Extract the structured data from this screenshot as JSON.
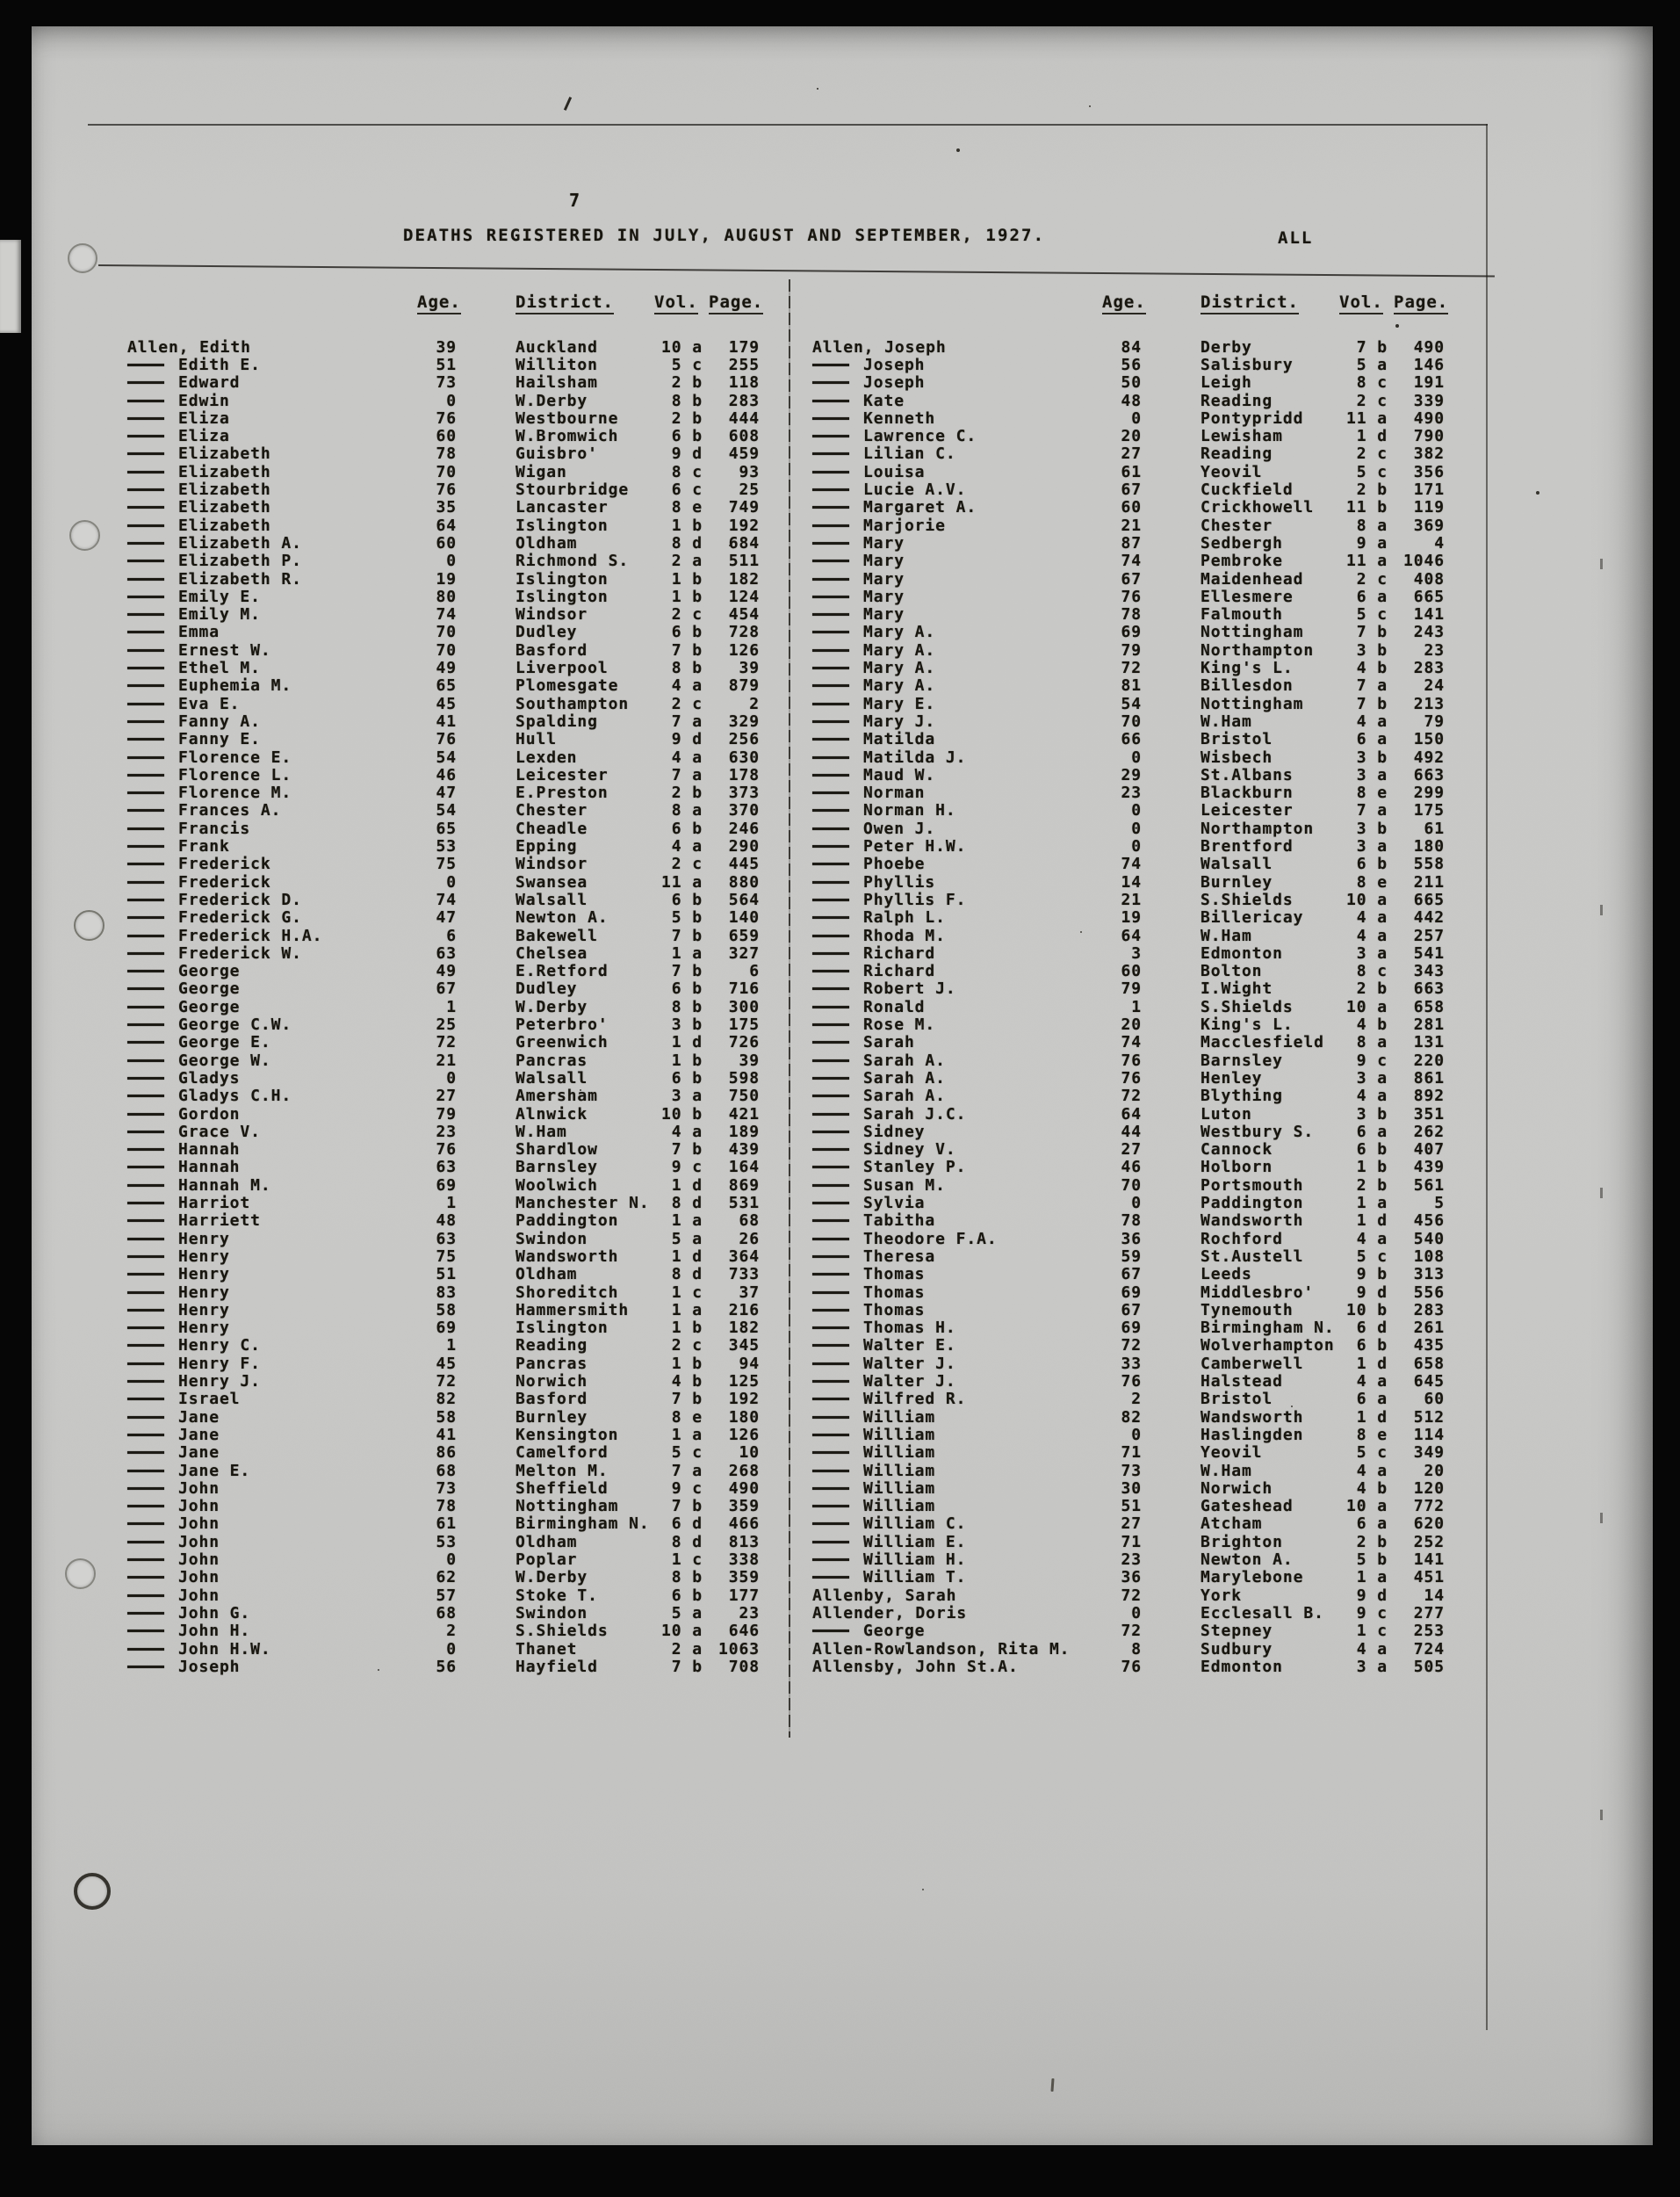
{
  "colors": {
    "paper": "#c7c7c5",
    "ink": "#18160f"
  },
  "page": {
    "number": "7",
    "title": "DEATHS REGISTERED IN JULY, AUGUST AND SEPTEMBER, 1927.",
    "corner_label": "ALL"
  },
  "columns": {
    "age": "Age.",
    "district": "District.",
    "vol": "Vol.",
    "page": "Page."
  },
  "left_table": {
    "rows": [
      [
        "Allen, Edith",
        0,
        "39",
        "Auckland",
        "10 a",
        "179"
      ],
      [
        "Edith E.",
        1,
        "51",
        "Williton",
        "5 c",
        "255"
      ],
      [
        "Edward",
        1,
        "73",
        "Hailsham",
        "2 b",
        "118"
      ],
      [
        "Edwin",
        1,
        "0",
        "W.Derby",
        "8 b",
        "283"
      ],
      [
        "Eliza",
        1,
        "76",
        "Westbourne",
        "2 b",
        "444"
      ],
      [
        "Eliza",
        1,
        "60",
        "W.Bromwich",
        "6 b",
        "608"
      ],
      [
        "Elizabeth",
        1,
        "78",
        "Guisbro'",
        "9 d",
        "459"
      ],
      [
        "Elizabeth",
        1,
        "70",
        "Wigan",
        "8 c",
        "93"
      ],
      [
        "Elizabeth",
        1,
        "76",
        "Stourbridge",
        "6 c",
        "25"
      ],
      [
        "Elizabeth",
        1,
        "35",
        "Lancaster",
        "8 e",
        "749"
      ],
      [
        "Elizabeth",
        1,
        "64",
        "Islington",
        "1 b",
        "192"
      ],
      [
        "Elizabeth A.",
        1,
        "60",
        "Oldham",
        "8 d",
        "684"
      ],
      [
        "Elizabeth P.",
        1,
        "0",
        "Richmond S.",
        "2 a",
        "511"
      ],
      [
        "Elizabeth R.",
        1,
        "19",
        "Islington",
        "1 b",
        "182"
      ],
      [
        "Emily E.",
        1,
        "80",
        "Islington",
        "1 b",
        "124"
      ],
      [
        "Emily M.",
        1,
        "74",
        "Windsor",
        "2 c",
        "454"
      ],
      [
        "Emma",
        1,
        "70",
        "Dudley",
        "6 b",
        "728"
      ],
      [
        "Ernest W.",
        1,
        "70",
        "Basford",
        "7 b",
        "126"
      ],
      [
        "Ethel M.",
        1,
        "49",
        "Liverpool",
        "8 b",
        "39"
      ],
      [
        "Euphemia M.",
        1,
        "65",
        "Plomesgate",
        "4 a",
        "879"
      ],
      [
        "Eva E.",
        1,
        "45",
        "Southampton",
        "2 c",
        "2"
      ],
      [
        "Fanny A.",
        1,
        "41",
        "Spalding",
        "7 a",
        "329"
      ],
      [
        "Fanny E.",
        1,
        "76",
        "Hull",
        "9 d",
        "256"
      ],
      [
        "Florence E.",
        1,
        "54",
        "Lexden",
        "4 a",
        "630"
      ],
      [
        "Florence L.",
        1,
        "46",
        "Leicester",
        "7 a",
        "178"
      ],
      [
        "Florence M.",
        1,
        "47",
        "E.Preston",
        "2 b",
        "373"
      ],
      [
        "Frances A.",
        1,
        "54",
        "Chester",
        "8 a",
        "370"
      ],
      [
        "Francis",
        1,
        "65",
        "Cheadle",
        "6 b",
        "246"
      ],
      [
        "Frank",
        1,
        "53",
        "Epping",
        "4 a",
        "290"
      ],
      [
        "Frederick",
        1,
        "75",
        "Windsor",
        "2 c",
        "445"
      ],
      [
        "Frederick",
        1,
        "0",
        "Swansea",
        "11 a",
        "880"
      ],
      [
        "Frederick D.",
        1,
        "74",
        "Walsall",
        "6 b",
        "564"
      ],
      [
        "Frederick G.",
        1,
        "47",
        "Newton A.",
        "5 b",
        "140"
      ],
      [
        "Frederick H.A.",
        1,
        "6",
        "Bakewell",
        "7 b",
        "659"
      ],
      [
        "Frederick W.",
        1,
        "63",
        "Chelsea",
        "1 a",
        "327"
      ],
      [
        "George",
        1,
        "49",
        "E.Retford",
        "7 b",
        "6"
      ],
      [
        "George",
        1,
        "67",
        "Dudley",
        "6 b",
        "716"
      ],
      [
        "George",
        1,
        "1",
        "W.Derby",
        "8 b",
        "300"
      ],
      [
        "George C.W.",
        1,
        "25",
        "Peterbro'",
        "3 b",
        "175"
      ],
      [
        "George E.",
        1,
        "72",
        "Greenwich",
        "1 d",
        "726"
      ],
      [
        "George W.",
        1,
        "21",
        "Pancras",
        "1 b",
        "39"
      ],
      [
        "Gladys",
        1,
        "0",
        "Walsall",
        "6 b",
        "598"
      ],
      [
        "Gladys C.H.",
        1,
        "27",
        "Amersham",
        "3 a",
        "750"
      ],
      [
        "Gordon",
        1,
        "79",
        "Alnwick",
        "10 b",
        "421"
      ],
      [
        "Grace V.",
        1,
        "23",
        "W.Ham",
        "4 a",
        "189"
      ],
      [
        "Hannah",
        1,
        "76",
        "Shardlow",
        "7 b",
        "439"
      ],
      [
        "Hannah",
        1,
        "63",
        "Barnsley",
        "9 c",
        "164"
      ],
      [
        "Hannah M.",
        1,
        "69",
        "Woolwich",
        "1 d",
        "869"
      ],
      [
        "Harriot",
        1,
        "1",
        "Manchester N.",
        "8 d",
        "531"
      ],
      [
        "Harriett",
        1,
        "48",
        "Paddington",
        "1 a",
        "68"
      ],
      [
        "Henry",
        1,
        "63",
        "Swindon",
        "5 a",
        "26"
      ],
      [
        "Henry",
        1,
        "75",
        "Wandsworth",
        "1 d",
        "364"
      ],
      [
        "Henry",
        1,
        "51",
        "Oldham",
        "8 d",
        "733"
      ],
      [
        "Henry",
        1,
        "83",
        "Shoreditch",
        "1 c",
        "37"
      ],
      [
        "Henry",
        1,
        "58",
        "Hammersmith",
        "1 a",
        "216"
      ],
      [
        "Henry",
        1,
        "69",
        "Islington",
        "1 b",
        "182"
      ],
      [
        "Henry C.",
        1,
        "1",
        "Reading",
        "2 c",
        "345"
      ],
      [
        "Henry F.",
        1,
        "45",
        "Pancras",
        "1 b",
        "94"
      ],
      [
        "Henry J.",
        1,
        "72",
        "Norwich",
        "4 b",
        "125"
      ],
      [
        "Israel",
        1,
        "82",
        "Basford",
        "7 b",
        "192"
      ],
      [
        "Jane",
        1,
        "58",
        "Burnley",
        "8 e",
        "180"
      ],
      [
        "Jane",
        1,
        "41",
        "Kensington",
        "1 a",
        "126"
      ],
      [
        "Jane",
        1,
        "86",
        "Camelford",
        "5 c",
        "10"
      ],
      [
        "Jane E.",
        1,
        "68",
        "Melton M.",
        "7 a",
        "268"
      ],
      [
        "John",
        1,
        "73",
        "Sheffield",
        "9 c",
        "490"
      ],
      [
        "John",
        1,
        "78",
        "Nottingham",
        "7 b",
        "359"
      ],
      [
        "John",
        1,
        "61",
        "Birmingham N.",
        "6 d",
        "466"
      ],
      [
        "John",
        1,
        "53",
        "Oldham",
        "8 d",
        "813"
      ],
      [
        "John",
        1,
        "0",
        "Poplar",
        "1 c",
        "338"
      ],
      [
        "John",
        1,
        "62",
        "W.Derby",
        "8 b",
        "359"
      ],
      [
        "John",
        1,
        "57",
        "Stoke T.",
        "6 b",
        "177"
      ],
      [
        "John G.",
        1,
        "68",
        "Swindon",
        "5 a",
        "23"
      ],
      [
        "John H.",
        1,
        "2",
        "S.Shields",
        "10 a",
        "646"
      ],
      [
        "John H.W.",
        1,
        "0",
        "Thanet",
        "2 a",
        "1063"
      ],
      [
        "Joseph",
        1,
        "56",
        "Hayfield",
        "7 b",
        "708"
      ]
    ]
  },
  "right_table": {
    "rows": [
      [
        "Allen, Joseph",
        0,
        "84",
        "Derby",
        "7 b",
        "490"
      ],
      [
        "Joseph",
        1,
        "56",
        "Salisbury",
        "5 a",
        "146"
      ],
      [
        "Joseph",
        1,
        "50",
        "Leigh",
        "8 c",
        "191"
      ],
      [
        "Kate",
        1,
        "48",
        "Reading",
        "2 c",
        "339"
      ],
      [
        "Kenneth",
        1,
        "0",
        "Pontypridd",
        "11 a",
        "490"
      ],
      [
        "Lawrence C.",
        1,
        "20",
        "Lewisham",
        "1 d",
        "790"
      ],
      [
        "Lilian C.",
        1,
        "27",
        "Reading",
        "2 c",
        "382"
      ],
      [
        "Louisa",
        1,
        "61",
        "Yeovil",
        "5 c",
        "356"
      ],
      [
        "Lucie A.V.",
        1,
        "67",
        "Cuckfield",
        "2 b",
        "171"
      ],
      [
        "Margaret A.",
        1,
        "60",
        "Crickhowell",
        "11 b",
        "119"
      ],
      [
        "Marjorie",
        1,
        "21",
        "Chester",
        "8 a",
        "369"
      ],
      [
        "Mary",
        1,
        "87",
        "Sedbergh",
        "9 a",
        "4"
      ],
      [
        "Mary",
        1,
        "74",
        "Pembroke",
        "11 a",
        "1046"
      ],
      [
        "Mary",
        1,
        "67",
        "Maidenhead",
        "2 c",
        "408"
      ],
      [
        "Mary",
        1,
        "76",
        "Ellesmere",
        "6 a",
        "665"
      ],
      [
        "Mary",
        1,
        "78",
        "Falmouth",
        "5 c",
        "141"
      ],
      [
        "Mary A.",
        1,
        "69",
        "Nottingham",
        "7 b",
        "243"
      ],
      [
        "Mary A.",
        1,
        "79",
        "Northampton",
        "3 b",
        "23"
      ],
      [
        "Mary A.",
        1,
        "72",
        "King's L.",
        "4 b",
        "283"
      ],
      [
        "Mary A.",
        1,
        "81",
        "Billesdon",
        "7 a",
        "24"
      ],
      [
        "Mary E.",
        1,
        "54",
        "Nottingham",
        "7 b",
        "213"
      ],
      [
        "Mary J.",
        1,
        "70",
        "W.Ham",
        "4 a",
        "79"
      ],
      [
        "Matilda",
        1,
        "66",
        "Bristol",
        "6 a",
        "150"
      ],
      [
        "Matilda J.",
        1,
        "0",
        "Wisbech",
        "3 b",
        "492"
      ],
      [
        "Maud W.",
        1,
        "29",
        "St.Albans",
        "3 a",
        "663"
      ],
      [
        "Norman",
        1,
        "23",
        "Blackburn",
        "8 e",
        "299"
      ],
      [
        "Norman H.",
        1,
        "0",
        "Leicester",
        "7 a",
        "175"
      ],
      [
        "Owen J.",
        1,
        "0",
        "Northampton",
        "3 b",
        "61"
      ],
      [
        "Peter H.W.",
        1,
        "0",
        "Brentford",
        "3 a",
        "180"
      ],
      [
        "Phoebe",
        1,
        "74",
        "Walsall",
        "6 b",
        "558"
      ],
      [
        "Phyllis",
        1,
        "14",
        "Burnley",
        "8 e",
        "211"
      ],
      [
        "Phyllis F.",
        1,
        "21",
        "S.Shields",
        "10 a",
        "665"
      ],
      [
        "Ralph L.",
        1,
        "19",
        "Billericay",
        "4 a",
        "442"
      ],
      [
        "Rhoda M.",
        1,
        "64",
        "W.Ham",
        "4 a",
        "257"
      ],
      [
        "Richard",
        1,
        "3",
        "Edmonton",
        "3 a",
        "541"
      ],
      [
        "Richard",
        1,
        "60",
        "Bolton",
        "8 c",
        "343"
      ],
      [
        "Robert J.",
        1,
        "79",
        "I.Wight",
        "2 b",
        "663"
      ],
      [
        "Ronald",
        1,
        "1",
        "S.Shields",
        "10 a",
        "658"
      ],
      [
        "Rose M.",
        1,
        "20",
        "King's L.",
        "4 b",
        "281"
      ],
      [
        "Sarah",
        1,
        "74",
        "Macclesfield",
        "8 a",
        "131"
      ],
      [
        "Sarah A.",
        1,
        "76",
        "Barnsley",
        "9 c",
        "220"
      ],
      [
        "Sarah A.",
        1,
        "76",
        "Henley",
        "3 a",
        "861"
      ],
      [
        "Sarah A.",
        1,
        "72",
        "Blything",
        "4 a",
        "892"
      ],
      [
        "Sarah J.C.",
        1,
        "64",
        "Luton",
        "3 b",
        "351"
      ],
      [
        "Sidney",
        1,
        "44",
        "Westbury S.",
        "6 a",
        "262"
      ],
      [
        "Sidney V.",
        1,
        "27",
        "Cannock",
        "6 b",
        "407"
      ],
      [
        "Stanley P.",
        1,
        "46",
        "Holborn",
        "1 b",
        "439"
      ],
      [
        "Susan M.",
        1,
        "70",
        "Portsmouth",
        "2 b",
        "561"
      ],
      [
        "Sylvia",
        1,
        "0",
        "Paddington",
        "1 a",
        "5"
      ],
      [
        "Tabitha",
        1,
        "78",
        "Wandsworth",
        "1 d",
        "456"
      ],
      [
        "Theodore F.A.",
        1,
        "36",
        "Rochford",
        "4 a",
        "540"
      ],
      [
        "Theresa",
        1,
        "59",
        "St.Austell",
        "5 c",
        "108"
      ],
      [
        "Thomas",
        1,
        "67",
        "Leeds",
        "9 b",
        "313"
      ],
      [
        "Thomas",
        1,
        "69",
        "Middlesbro'",
        "9 d",
        "556"
      ],
      [
        "Thomas",
        1,
        "67",
        "Tynemouth",
        "10 b",
        "283"
      ],
      [
        "Thomas H.",
        1,
        "69",
        "Birmingham N.",
        "6 d",
        "261"
      ],
      [
        "Walter E.",
        1,
        "72",
        "Wolverhampton",
        "6 b",
        "435"
      ],
      [
        "Walter J.",
        1,
        "33",
        "Camberwell",
        "1 d",
        "658"
      ],
      [
        "Walter J.",
        1,
        "76",
        "Halstead",
        "4 a",
        "645"
      ],
      [
        "Wilfred R.",
        1,
        "2",
        "Bristol",
        "6 a",
        "60"
      ],
      [
        "William",
        1,
        "82",
        "Wandsworth",
        "1 d",
        "512"
      ],
      [
        "William",
        1,
        "0",
        "Haslingden",
        "8 e",
        "114"
      ],
      [
        "William",
        1,
        "71",
        "Yeovil",
        "5 c",
        "349"
      ],
      [
        "William",
        1,
        "73",
        "W.Ham",
        "4 a",
        "20"
      ],
      [
        "William",
        1,
        "30",
        "Norwich",
        "4 b",
        "120"
      ],
      [
        "William",
        1,
        "51",
        "Gateshead",
        "10 a",
        "772"
      ],
      [
        "William C.",
        1,
        "27",
        "Atcham",
        "6 a",
        "620"
      ],
      [
        "William E.",
        1,
        "71",
        "Brighton",
        "2 b",
        "252"
      ],
      [
        "William H.",
        1,
        "23",
        "Newton A.",
        "5 b",
        "141"
      ],
      [
        "William T.",
        1,
        "36",
        "Marylebone",
        "1 a",
        "451"
      ],
      [
        "Allenby, Sarah",
        0,
        "72",
        "York",
        "9 d",
        "14"
      ],
      [
        "Allender, Doris",
        0,
        "0",
        "Ecclesall B.",
        "9 c",
        "277"
      ],
      [
        "George",
        1,
        "72",
        "Stepney",
        "1 c",
        "253"
      ],
      [
        "Allen-Rowlandson, Rita M.",
        0,
        "8",
        "Sudbury",
        "4 a",
        "724"
      ],
      [
        "Allensby, John St.A.",
        0,
        "76",
        "Edmonton",
        "3 a",
        "505"
      ]
    ]
  }
}
